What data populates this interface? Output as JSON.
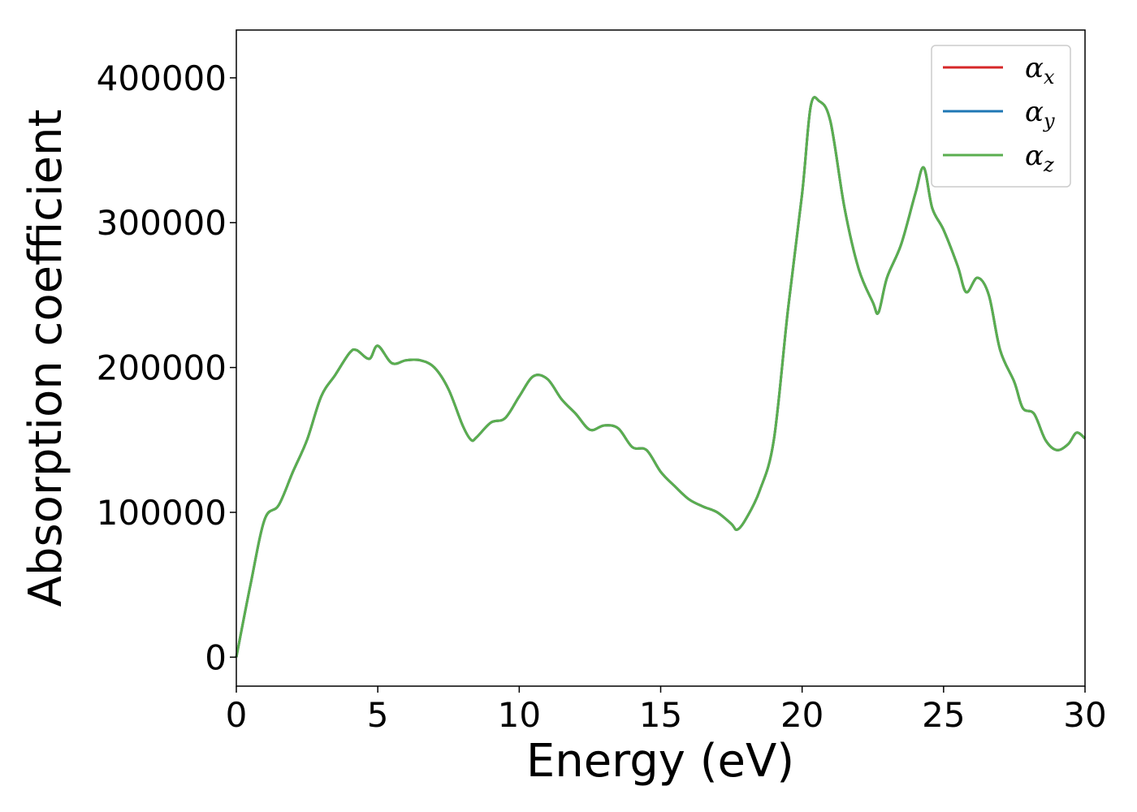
{
  "chart_data": {
    "type": "line",
    "title": "",
    "xlabel": "Energy (eV)",
    "ylabel": "Absorption coefficient",
    "xlim": [
      0,
      30
    ],
    "ylim": [
      -20000,
      433000
    ],
    "xticks": [
      0,
      5,
      10,
      15,
      20,
      25,
      30
    ],
    "yticks": [
      0,
      100000,
      200000,
      300000,
      400000
    ],
    "grid": false,
    "legend_position": "top-right",
    "x": [
      0,
      0.5,
      1.0,
      1.5,
      2.0,
      2.5,
      3.0,
      3.5,
      4.0,
      4.25,
      4.7,
      5.0,
      5.5,
      6.0,
      6.5,
      7.0,
      7.5,
      8.0,
      8.3,
      8.5,
      9.0,
      9.5,
      10.0,
      10.5,
      11.0,
      11.5,
      12.0,
      12.5,
      13.0,
      13.5,
      14.0,
      14.5,
      15.0,
      15.5,
      16.0,
      16.5,
      17.0,
      17.5,
      17.7,
      18.0,
      18.5,
      19.0,
      19.5,
      20.0,
      20.3,
      20.6,
      21.0,
      21.5,
      22.0,
      22.5,
      22.7,
      23.0,
      23.5,
      24.0,
      24.3,
      24.6,
      25.0,
      25.5,
      25.8,
      26.2,
      26.6,
      27.0,
      27.5,
      27.8,
      28.2,
      28.6,
      29.0,
      29.4,
      29.7,
      30.0
    ],
    "series": [
      {
        "name": "αx",
        "color": "#d62728",
        "values": [
          0,
          50000,
          95000,
          105000,
          128000,
          150000,
          180000,
          195000,
          210000,
          212000,
          206000,
          215000,
          203000,
          205000,
          205000,
          200000,
          185000,
          160000,
          150000,
          152000,
          162000,
          165000,
          180000,
          194000,
          192000,
          178000,
          168000,
          157000,
          160000,
          158000,
          145000,
          143000,
          128000,
          118000,
          109000,
          104000,
          100000,
          92000,
          88000,
          95000,
          115000,
          150000,
          240000,
          320000,
          380000,
          384000,
          370000,
          310000,
          268000,
          245000,
          238000,
          262000,
          285000,
          320000,
          338000,
          310000,
          295000,
          270000,
          252000,
          262000,
          250000,
          212000,
          190000,
          172000,
          168000,
          150000,
          143000,
          147000,
          155000,
          151000
        ]
      },
      {
        "name": "αy",
        "color": "#1f77b4",
        "values": [
          0,
          50000,
          95000,
          105000,
          128000,
          150000,
          180000,
          195000,
          210000,
          212000,
          206000,
          215000,
          203000,
          205000,
          205000,
          200000,
          185000,
          160000,
          150000,
          152000,
          162000,
          165000,
          180000,
          194000,
          192000,
          178000,
          168000,
          157000,
          160000,
          158000,
          145000,
          143000,
          128000,
          118000,
          109000,
          104000,
          100000,
          92000,
          88000,
          95000,
          115000,
          150000,
          240000,
          320000,
          380000,
          384000,
          370000,
          310000,
          268000,
          245000,
          238000,
          262000,
          285000,
          320000,
          338000,
          310000,
          295000,
          270000,
          252000,
          262000,
          250000,
          212000,
          190000,
          172000,
          168000,
          150000,
          143000,
          147000,
          155000,
          151000
        ]
      },
      {
        "name": "αz",
        "color": "#5aae4f",
        "values": [
          0,
          50000,
          95000,
          105000,
          128000,
          150000,
          180000,
          195000,
          210000,
          212000,
          206000,
          215000,
          203000,
          205000,
          205000,
          200000,
          185000,
          160000,
          150000,
          152000,
          162000,
          165000,
          180000,
          194000,
          192000,
          178000,
          168000,
          157000,
          160000,
          158000,
          145000,
          143000,
          128000,
          118000,
          109000,
          104000,
          100000,
          92000,
          88000,
          95000,
          115000,
          150000,
          240000,
          320000,
          380000,
          384000,
          370000,
          310000,
          268000,
          245000,
          238000,
          262000,
          285000,
          320000,
          338000,
          310000,
          295000,
          270000,
          252000,
          262000,
          250000,
          212000,
          190000,
          172000,
          168000,
          150000,
          143000,
          147000,
          155000,
          151000
        ]
      }
    ],
    "legend": [
      {
        "symbol": "α",
        "subscript": "x",
        "color": "#d62728"
      },
      {
        "symbol": "α",
        "subscript": "y",
        "color": "#1f77b4"
      },
      {
        "symbol": "α",
        "subscript": "z",
        "color": "#5aae4f"
      }
    ]
  }
}
